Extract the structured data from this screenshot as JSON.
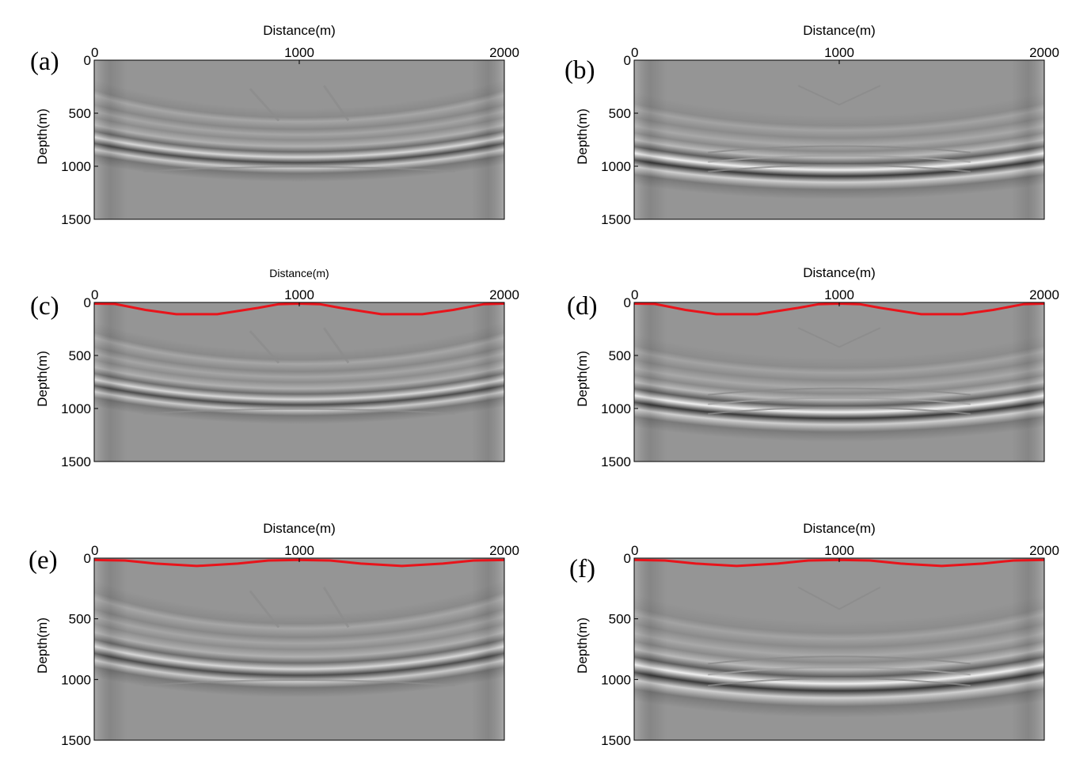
{
  "chart_data": [
    {
      "type": "heatmap",
      "panel_label": "(a)",
      "xlabel": "Distance(m)",
      "ylabel": "Depth(m)",
      "xlim": [
        0,
        2000
      ],
      "ylim": [
        0,
        1500
      ],
      "x_ticks": [
        0,
        1000,
        2000
      ],
      "y_ticks": [
        0,
        500,
        1000,
        1500
      ],
      "x_tick_labels": [
        "0",
        "1000",
        "2000"
      ],
      "y_tick_labels": [
        "0",
        "500",
        "1000",
        "1500"
      ],
      "y_reversed": true,
      "colormap": "gray",
      "pattern": "outer",
      "surface": null
    },
    {
      "type": "heatmap",
      "panel_label": "(b)",
      "xlabel": "Distance(m)",
      "ylabel": "Depth(m)",
      "xlim": [
        0,
        2000
      ],
      "ylim": [
        0,
        1500
      ],
      "x_ticks": [
        0,
        1000,
        2000
      ],
      "y_ticks": [
        0,
        500,
        1000,
        1500
      ],
      "x_tick_labels": [
        "0",
        "1000",
        "2000"
      ],
      "y_tick_labels": [
        "0",
        "500",
        "1000",
        "1500"
      ],
      "y_reversed": true,
      "colormap": "gray",
      "pattern": "center",
      "surface": null
    },
    {
      "type": "heatmap",
      "panel_label": "(c)",
      "xlabel": "Distance(m)",
      "ylabel": "Depth(m)",
      "xlabel_small": true,
      "xlim": [
        0,
        2000
      ],
      "ylim": [
        0,
        1500
      ],
      "x_ticks": [
        0,
        1000,
        2000
      ],
      "y_ticks": [
        0,
        500,
        1000,
        1500
      ],
      "x_tick_labels": [
        "0",
        "1000",
        "2000"
      ],
      "y_tick_labels": [
        "0",
        "500",
        "1000",
        "1500"
      ],
      "y_reversed": true,
      "colormap": "gray",
      "pattern": "outer",
      "surface": {
        "color": "#e8141b",
        "x": [
          0,
          100,
          250,
          400,
          600,
          800,
          900,
          1000,
          1100,
          1200,
          1400,
          1600,
          1750,
          1900,
          2000
        ],
        "depth": [
          0,
          3,
          60,
          100,
          100,
          40,
          5,
          0,
          5,
          40,
          100,
          100,
          60,
          5,
          0
        ]
      }
    },
    {
      "type": "heatmap",
      "panel_label": "(d)",
      "xlabel": "Distance(m)",
      "ylabel": "Depth(m)",
      "xlim": [
        0,
        2000
      ],
      "ylim": [
        0,
        1500
      ],
      "x_ticks": [
        0,
        1000,
        2000
      ],
      "y_ticks": [
        0,
        500,
        1000,
        1500
      ],
      "x_tick_labels": [
        "0",
        "1000",
        "2000"
      ],
      "y_tick_labels": [
        "0",
        "500",
        "1000",
        "1500"
      ],
      "y_reversed": true,
      "colormap": "gray",
      "pattern": "center",
      "surface": {
        "color": "#e8141b",
        "x": [
          0,
          100,
          250,
          400,
          600,
          800,
          900,
          1000,
          1100,
          1200,
          1400,
          1600,
          1750,
          1900,
          2000
        ],
        "depth": [
          0,
          3,
          60,
          100,
          100,
          40,
          5,
          0,
          5,
          40,
          100,
          100,
          60,
          5,
          0
        ]
      }
    },
    {
      "type": "heatmap",
      "panel_label": "(e)",
      "xlabel": "Distance(m)",
      "ylabel": "Depth(m)",
      "xlim": [
        0,
        2000
      ],
      "ylim": [
        0,
        1500
      ],
      "x_ticks": [
        0,
        1000,
        2000
      ],
      "y_ticks": [
        0,
        500,
        1000,
        1500
      ],
      "x_tick_labels": [
        "0",
        "1000",
        "2000"
      ],
      "y_tick_labels": [
        "0",
        "500",
        "1000",
        "1500"
      ],
      "y_reversed": true,
      "colormap": "gray",
      "pattern": "outer",
      "surface": {
        "color": "#e8141b",
        "x": [
          0,
          150,
          300,
          500,
          700,
          850,
          1000,
          1150,
          1300,
          1500,
          1700,
          1850,
          2000
        ],
        "depth": [
          5,
          10,
          35,
          55,
          35,
          10,
          5,
          10,
          35,
          55,
          35,
          10,
          5
        ]
      }
    },
    {
      "type": "heatmap",
      "panel_label": "(f)",
      "xlabel": "Distance(m)",
      "ylabel": "Depth(m)",
      "xlim": [
        0,
        2000
      ],
      "ylim": [
        0,
        1500
      ],
      "x_ticks": [
        0,
        1000,
        2000
      ],
      "y_ticks": [
        0,
        500,
        1000,
        1500
      ],
      "x_tick_labels": [
        "0",
        "1000",
        "2000"
      ],
      "y_tick_labels": [
        "0",
        "500",
        "1000",
        "1500"
      ],
      "y_reversed": true,
      "colormap": "gray",
      "pattern": "center",
      "surface": {
        "color": "#e8141b",
        "x": [
          0,
          150,
          300,
          500,
          700,
          850,
          1000,
          1150,
          1300,
          1500,
          1700,
          1850,
          2000
        ],
        "depth": [
          5,
          10,
          35,
          55,
          35,
          10,
          5,
          10,
          35,
          55,
          35,
          10,
          5
        ]
      }
    }
  ]
}
